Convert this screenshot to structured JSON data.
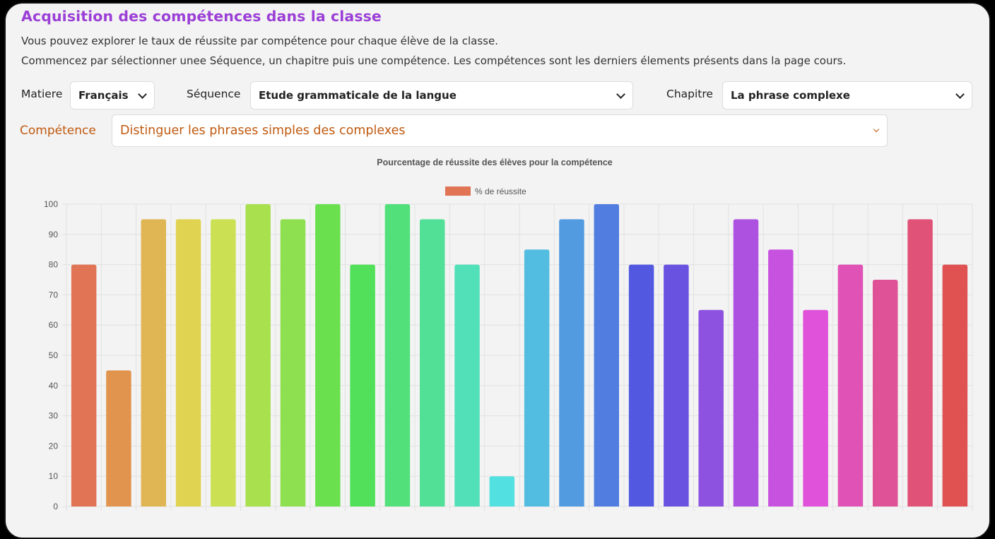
{
  "header": {
    "title": "Acquisition des compétences dans la classe",
    "line1": "Vous pouvez explorer le taux de réussite par compétence pour chaque élève de la classe.",
    "line2": "Commencez par sélectionner unee Séquence, un chapitre puis une compétence. Les compétences sont les derniers élements présents dans la page cours."
  },
  "filters": {
    "matiere_label": "Matiere",
    "matiere_value": "Français",
    "sequence_label": "Séquence",
    "sequence_value": "Etude grammaticale de la langue",
    "chapitre_label": "Chapitre",
    "chapitre_value": "La phrase complexe",
    "competence_label": "Compétence",
    "competence_value": "Distinguer les phrases simples des complexes"
  },
  "chart_data": {
    "type": "bar",
    "title": "Pourcentage de réussite des élèves pour la compétence",
    "legend": "% de réussite",
    "legend_position": "top-center",
    "ylim": [
      0,
      100
    ],
    "yticks": [
      0,
      10,
      20,
      30,
      40,
      50,
      60,
      70,
      80,
      90,
      100
    ],
    "grid": true,
    "values": [
      80,
      45,
      95,
      95,
      95,
      100,
      95,
      100,
      80,
      100,
      95,
      80,
      10,
      85,
      95,
      100,
      80,
      80,
      65,
      95,
      85,
      65,
      80,
      75,
      95,
      80
    ],
    "colors": [
      "#e07455",
      "#e0944e",
      "#e0b654",
      "#e0d351",
      "#cbe053",
      "#a8e04e",
      "#8ee051",
      "#6be04f",
      "#52e05a",
      "#52e07a",
      "#52e097",
      "#52e0b8",
      "#52e0e0",
      "#52bde0",
      "#529be0",
      "#527de0",
      "#5259e0",
      "#6a52e0",
      "#8e52e0",
      "#ad52e0",
      "#c852e0",
      "#e052d9",
      "#e052b5",
      "#e05298",
      "#e05277",
      "#e05252"
    ]
  }
}
